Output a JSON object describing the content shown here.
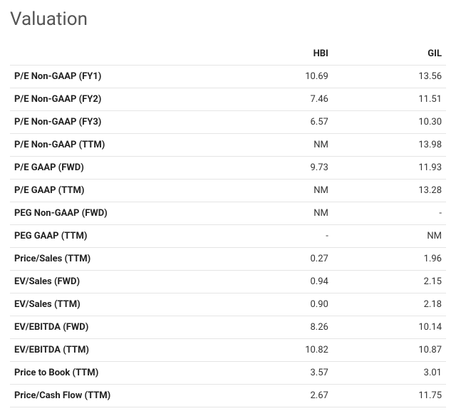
{
  "title": "Valuation",
  "columns": [
    "",
    "HBI",
    "GIL"
  ],
  "rows": [
    {
      "metric": "P/E Non-GAAP (FY1)",
      "hbi": "10.69",
      "gil": "13.56"
    },
    {
      "metric": "P/E Non-GAAP (FY2)",
      "hbi": "7.46",
      "gil": "11.51"
    },
    {
      "metric": "P/E Non-GAAP (FY3)",
      "hbi": "6.57",
      "gil": "10.30"
    },
    {
      "metric": "P/E Non-GAAP (TTM)",
      "hbi": "NM",
      "gil": "13.98"
    },
    {
      "metric": "P/E GAAP (FWD)",
      "hbi": "9.73",
      "gil": "11.93"
    },
    {
      "metric": "P/E GAAP (TTM)",
      "hbi": "NM",
      "gil": "13.28"
    },
    {
      "metric": "PEG Non-GAAP (FWD)",
      "hbi": "NM",
      "gil": "-"
    },
    {
      "metric": "PEG GAAP (TTM)",
      "hbi": "-",
      "gil": "NM"
    },
    {
      "metric": "Price/Sales (TTM)",
      "hbi": "0.27",
      "gil": "1.96"
    },
    {
      "metric": "EV/Sales (FWD)",
      "hbi": "0.94",
      "gil": "2.15"
    },
    {
      "metric": "EV/Sales (TTM)",
      "hbi": "0.90",
      "gil": "2.18"
    },
    {
      "metric": "EV/EBITDA (FWD)",
      "hbi": "8.26",
      "gil": "10.14"
    },
    {
      "metric": "EV/EBITDA (TTM)",
      "hbi": "10.82",
      "gil": "10.87"
    },
    {
      "metric": "Price to Book (TTM)",
      "hbi": "3.57",
      "gil": "3.01"
    },
    {
      "metric": "Price/Cash Flow (TTM)",
      "hbi": "2.67",
      "gil": "11.75"
    }
  ]
}
